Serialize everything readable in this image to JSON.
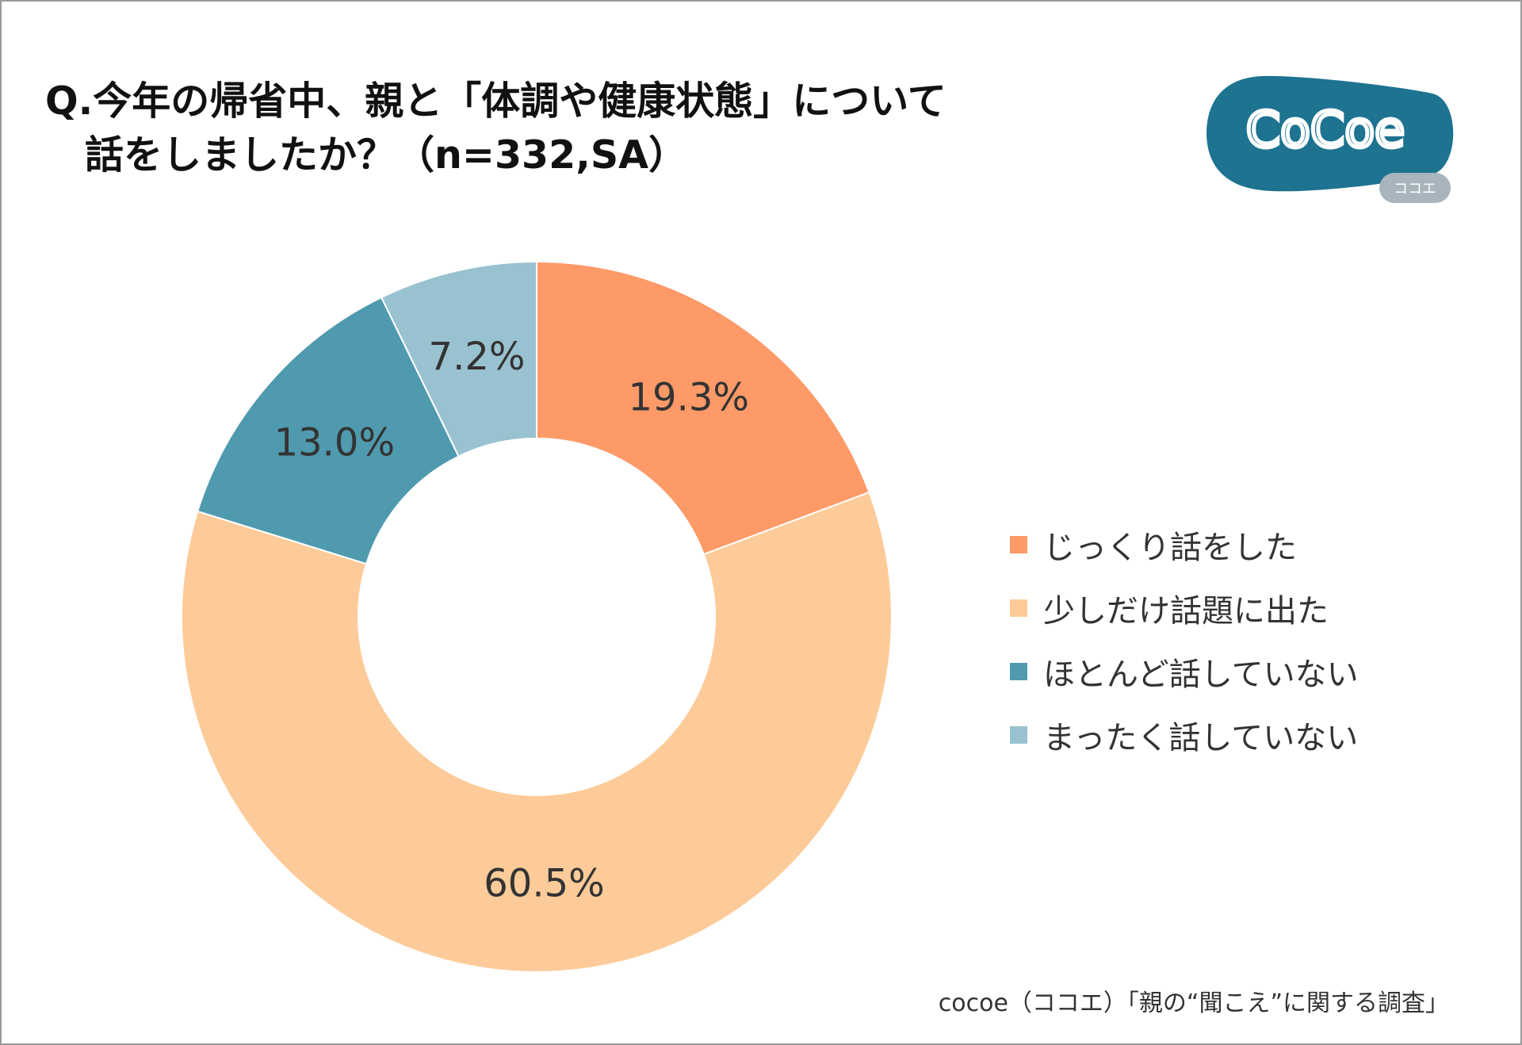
{
  "title": {
    "line1": "Q.今年の帰省中、親と「体調や健康状態」について",
    "line2": "話をしましたか？（n=332,SA）"
  },
  "logo": {
    "text": "CoCoe",
    "sub": "ココエ",
    "color": "#1d7390"
  },
  "footer": "cocoe（ココエ）「親の“聞こえ”に関する調査」",
  "chart_data": {
    "type": "pie",
    "variant": "donut",
    "start": "top, clockwise",
    "legend_position": "right",
    "categories": [
      "じっくり話をした",
      "少しだけ話題に出た",
      "ほとんど話していない",
      "まったく話していない"
    ],
    "values": [
      19.3,
      60.5,
      13.0,
      7.2
    ],
    "labels": [
      "19.3%",
      "60.5%",
      "13.0%",
      "7.2%"
    ],
    "colors": [
      "#fd9a68",
      "#fdcb99",
      "#4f9aae",
      "#99c2d0"
    ]
  }
}
